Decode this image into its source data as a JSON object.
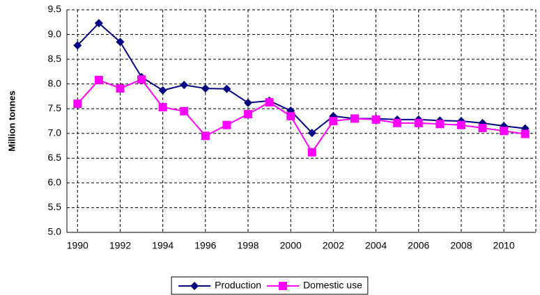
{
  "chart_data": {
    "type": "line",
    "y_label": "Million tonnes",
    "x": [
      1990,
      1991,
      1992,
      1993,
      1994,
      1995,
      1996,
      1997,
      1998,
      1999,
      2000,
      2001,
      2002,
      2003,
      2004,
      2005,
      2006,
      2007,
      2008,
      2009,
      2010,
      2011
    ],
    "series": [
      {
        "name": "Production",
        "color": "#000080",
        "marker": "diamond",
        "values": [
          8.78,
          9.23,
          8.85,
          8.14,
          7.87,
          7.98,
          7.91,
          7.9,
          7.62,
          7.66,
          7.46,
          7.01,
          7.35,
          7.3,
          7.3,
          7.28,
          7.28,
          7.26,
          7.25,
          7.21,
          7.15,
          7.1
        ]
      },
      {
        "name": "Domestic use",
        "color": "#ff00ff",
        "marker": "square",
        "values": [
          7.6,
          8.08,
          7.91,
          8.09,
          7.53,
          7.45,
          6.95,
          7.17,
          7.39,
          7.63,
          7.35,
          6.62,
          7.25,
          7.3,
          7.28,
          7.21,
          7.21,
          7.19,
          7.17,
          7.11,
          7.05,
          6.99
        ]
      }
    ],
    "xlim": [
      1989.5,
      2011.5
    ],
    "xticks": [
      1990,
      1992,
      1994,
      1996,
      1998,
      2000,
      2002,
      2004,
      2006,
      2008,
      2010
    ],
    "ylim": [
      5,
      9.5
    ],
    "yticks": [
      {
        "value": 5,
        "label": "5.0"
      },
      5.5,
      {
        "value": 6,
        "label": "6.0"
      },
      6.5,
      {
        "value": 7,
        "label": "7.0"
      },
      7.5,
      {
        "value": 8,
        "label": "8.0"
      },
      8.5,
      {
        "value": 9,
        "label": "9.0"
      },
      9.5
    ],
    "grid": true,
    "legend": "bottom"
  }
}
